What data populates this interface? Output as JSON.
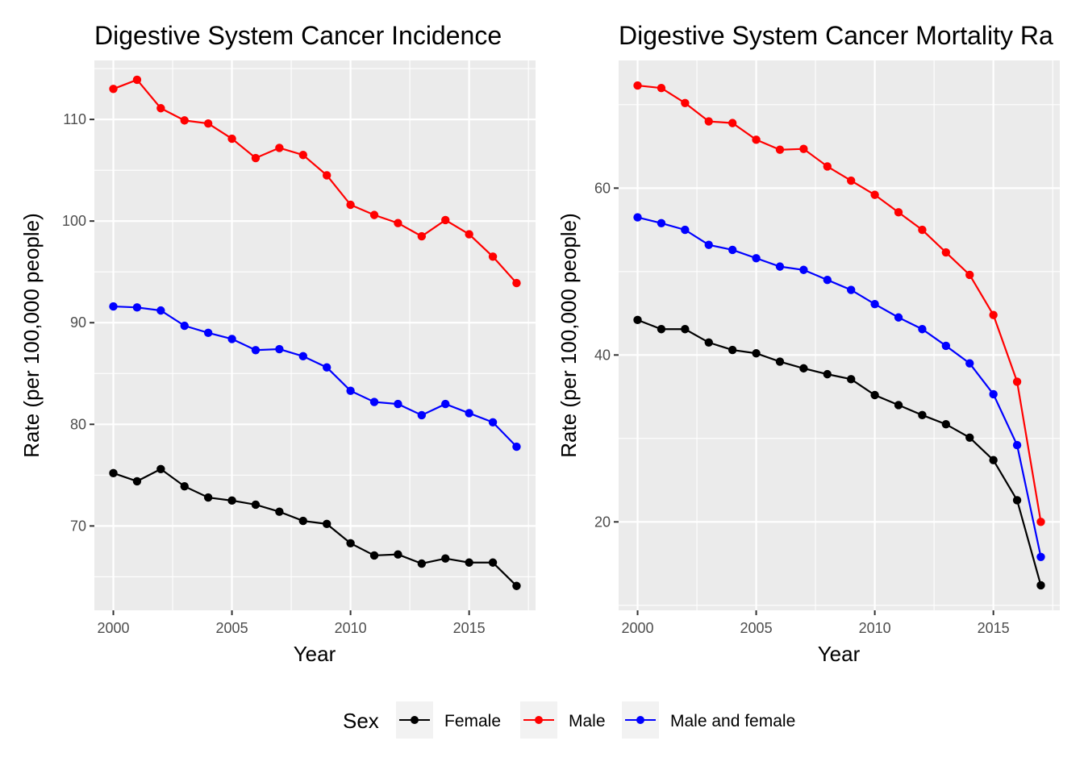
{
  "legend": {
    "title": "Sex",
    "items": [
      {
        "label": "Female",
        "color": "#000000"
      },
      {
        "label": "Male",
        "color": "#ff0000"
      },
      {
        "label": "Male and female",
        "color": "#0000ff"
      }
    ]
  },
  "chart_data": [
    {
      "type": "line",
      "title": "Digestive System Cancer Incidence",
      "xlabel": "Year",
      "ylabel": "Rate (per 100,000 people)",
      "xlim": [
        1999.2,
        2017.8
      ],
      "ylim": [
        61.7,
        115.8
      ],
      "xticks": [
        2000,
        2005,
        2010,
        2015
      ],
      "yticks": [
        70,
        80,
        90,
        100,
        110
      ],
      "grid": true,
      "x": [
        2000,
        2001,
        2002,
        2003,
        2004,
        2005,
        2006,
        2007,
        2008,
        2009,
        2010,
        2011,
        2012,
        2013,
        2014,
        2015,
        2016,
        2017
      ],
      "series": [
        {
          "name": "Female",
          "color": "#000000",
          "values": [
            75.2,
            74.4,
            75.6,
            73.9,
            72.8,
            72.5,
            72.1,
            71.4,
            70.5,
            70.2,
            68.3,
            67.1,
            67.2,
            66.3,
            66.8,
            66.4,
            66.4,
            64.1
          ]
        },
        {
          "name": "Male",
          "color": "#ff0000",
          "values": [
            113.0,
            113.9,
            111.1,
            109.9,
            109.6,
            108.1,
            106.2,
            107.2,
            106.5,
            104.5,
            101.6,
            100.6,
            99.8,
            98.5,
            100.1,
            98.7,
            96.5,
            93.9
          ]
        },
        {
          "name": "Male and female",
          "color": "#0000ff",
          "values": [
            91.6,
            91.5,
            91.2,
            89.7,
            89.0,
            88.4,
            87.3,
            87.4,
            86.7,
            85.6,
            83.3,
            82.2,
            82.0,
            80.9,
            82.0,
            81.1,
            80.2,
            77.8
          ]
        }
      ]
    },
    {
      "type": "line",
      "title": "Digestive System Cancer Mortality Ra",
      "xlabel": "Year",
      "ylabel": "Rate (per 100,000 people)",
      "xlim": [
        1999.2,
        2017.8
      ],
      "ylim": [
        9.4,
        75.3
      ],
      "xticks": [
        2000,
        2005,
        2010,
        2015
      ],
      "yticks": [
        20,
        40,
        60
      ],
      "grid": true,
      "x": [
        2000,
        2001,
        2002,
        2003,
        2004,
        2005,
        2006,
        2007,
        2008,
        2009,
        2010,
        2011,
        2012,
        2013,
        2014,
        2015,
        2016,
        2017
      ],
      "series": [
        {
          "name": "Female",
          "color": "#000000",
          "values": [
            44.2,
            43.1,
            43.1,
            41.5,
            40.6,
            40.2,
            39.2,
            38.4,
            37.7,
            37.1,
            35.2,
            34.0,
            32.8,
            31.7,
            30.1,
            27.4,
            22.6,
            12.4
          ]
        },
        {
          "name": "Male",
          "color": "#ff0000",
          "values": [
            72.3,
            72.0,
            70.2,
            68.0,
            67.8,
            65.8,
            64.6,
            64.7,
            62.6,
            60.9,
            59.2,
            57.1,
            55.0,
            52.3,
            49.6,
            44.8,
            36.8,
            20.0
          ]
        },
        {
          "name": "Male and female",
          "color": "#0000ff",
          "values": [
            56.5,
            55.8,
            55.0,
            53.2,
            52.6,
            51.6,
            50.6,
            50.2,
            49.0,
            47.8,
            46.1,
            44.5,
            43.1,
            41.1,
            39.0,
            35.3,
            29.2,
            15.8
          ]
        }
      ]
    }
  ]
}
